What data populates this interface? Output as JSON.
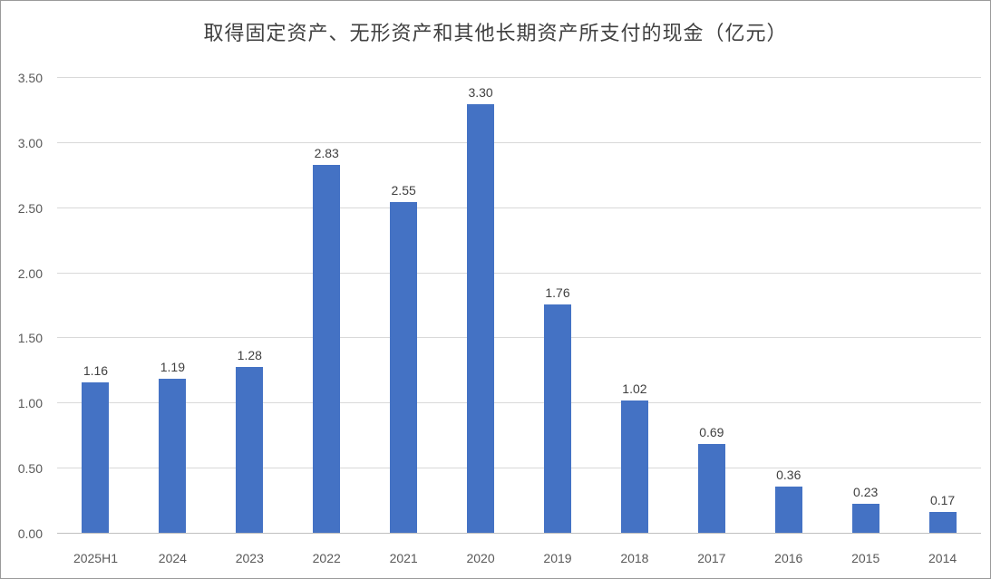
{
  "title": "取得固定资产、无形资产和其他长期资产所支付的现金（亿元）",
  "chart_data": {
    "type": "bar",
    "title": "取得固定资产、无形资产和其他长期资产所支付的现金（亿元）",
    "categories": [
      "2025H1",
      "2024",
      "2023",
      "2022",
      "2021",
      "2020",
      "2019",
      "2018",
      "2017",
      "2016",
      "2015",
      "2014"
    ],
    "values": [
      1.16,
      1.19,
      1.28,
      2.83,
      2.55,
      3.3,
      1.76,
      1.02,
      0.69,
      0.36,
      0.23,
      0.17
    ],
    "value_labels": [
      "1.16",
      "1.19",
      "1.28",
      "2.83",
      "2.55",
      "3.30",
      "1.76",
      "1.02",
      "0.69",
      "0.36",
      "0.23",
      "0.17"
    ],
    "xlabel": "",
    "ylabel": "",
    "ylim": [
      0,
      3.5
    ],
    "yticks": [
      "0.00",
      "0.50",
      "1.00",
      "1.50",
      "2.00",
      "2.50",
      "3.00",
      "3.50"
    ],
    "ytick_values": [
      0,
      0.5,
      1.0,
      1.5,
      2.0,
      2.5,
      3.0,
      3.5
    ],
    "grid": true,
    "legend_position": "none",
    "colors": {
      "bar": "#4472C4",
      "gridline": "#d9d9d9",
      "axis_line": "#bfbfbf",
      "value_label": "#404040",
      "axis_text": "#595959",
      "title_text": "#404040"
    }
  }
}
